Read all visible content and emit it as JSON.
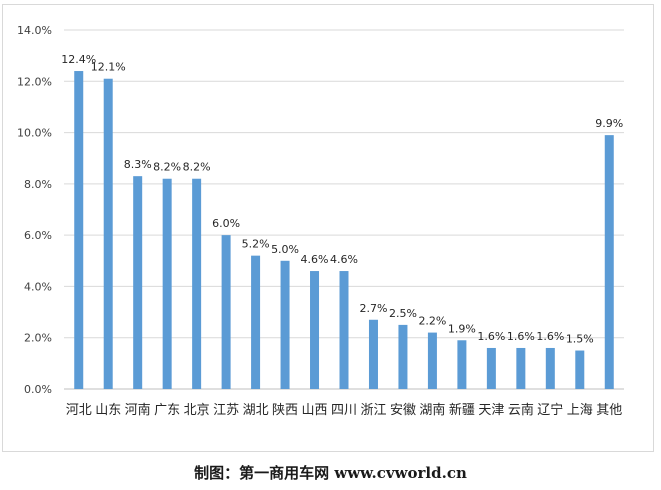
{
  "chart_data": {
    "type": "bar",
    "categories": [
      "河北",
      "山东",
      "河南",
      "广东",
      "北京",
      "江苏",
      "湖北",
      "陕西",
      "山西",
      "四川",
      "浙江",
      "安徽",
      "湖南",
      "新疆",
      "天津",
      "云南",
      "辽宁",
      "上海",
      "其他"
    ],
    "values": [
      12.4,
      12.1,
      8.3,
      8.2,
      8.2,
      6.0,
      5.2,
      5.0,
      4.6,
      4.6,
      2.7,
      2.5,
      2.2,
      1.9,
      1.6,
      1.6,
      1.6,
      1.5,
      9.9
    ],
    "value_labels": [
      "12.4%",
      "12.1%",
      "8.3%",
      "8.2%",
      "8.2%",
      "6.0%",
      "5.2%",
      "5.0%",
      "4.6%",
      "4.6%",
      "2.7%",
      "2.5%",
      "2.2%",
      "1.9%",
      "1.6%",
      "1.6%",
      "1.6%",
      "1.5%",
      "9.9%"
    ],
    "yticks": [
      0,
      2,
      4,
      6,
      8,
      10,
      12,
      14
    ],
    "ytick_labels": [
      "0.0%",
      "2.0%",
      "4.0%",
      "6.0%",
      "8.0%",
      "10.0%",
      "12.0%",
      "14.0%"
    ],
    "ylim": [
      0,
      14
    ],
    "grid": true,
    "bar_color": "#5b9bd5",
    "title": "",
    "xlabel": "",
    "ylabel": ""
  },
  "caption": "制图：第一商用车网 www.cvworld.cn"
}
